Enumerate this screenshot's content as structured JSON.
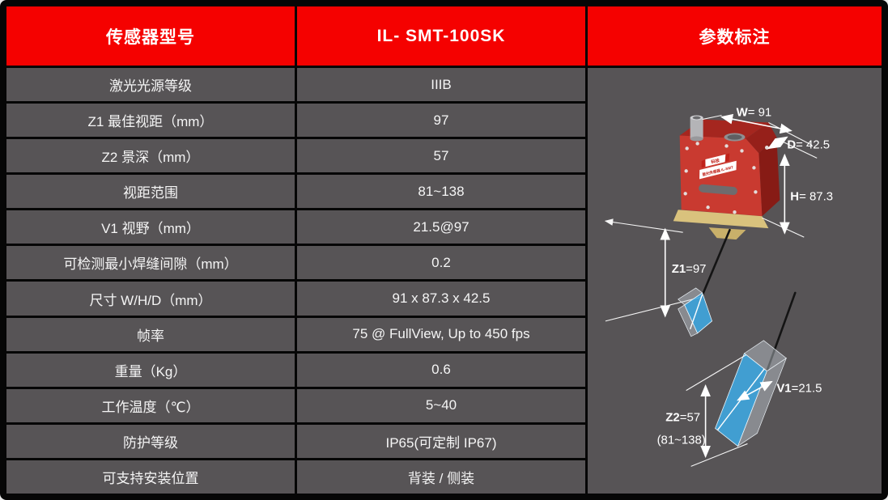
{
  "header": {
    "col_model": "传感器型号",
    "col_value": "IL- SMT-100SK",
    "col_diagram": "参数标注"
  },
  "rows": [
    {
      "label": "激光光源等级",
      "value": "IIIB"
    },
    {
      "label": "Z1 最佳视距（mm）",
      "value": "97"
    },
    {
      "label": "Z2 景深（mm）",
      "value": "57"
    },
    {
      "label": "视距范围",
      "value": "81~138"
    },
    {
      "label": "V1 视野（mm）",
      "value": "21.5@97"
    },
    {
      "label": "可检测最小焊缝间隙（mm）",
      "value": "0.2"
    },
    {
      "label": "尺寸 W/H/D（mm）",
      "value": "91 x 87.3 x 42.5"
    },
    {
      "label": "帧率",
      "value": "75 @ FullView, Up to 450 fps"
    },
    {
      "label": "重量（Kg）",
      "value": "0.6"
    },
    {
      "label": "工作温度（℃）",
      "value": "5~40"
    },
    {
      "label": "防护等级",
      "value": "IP65(可定制 IP67)"
    },
    {
      "label": "可支持安装位置",
      "value": "背装 / 侧装"
    }
  ],
  "diagram": {
    "w_label": "W",
    "w_value": "= 91",
    "d_label": "D",
    "d_value": "= 42.5",
    "h_label": "H",
    "h_value": "= 87.3",
    "z1_label": "Z1",
    "z1_value": "=97",
    "z2_label": "Z2",
    "z2_value": "=57",
    "range_value": "(81~138)",
    "v1_label": "V1",
    "v1_value": "=21.5",
    "sticker_line1": "科技",
    "sticker_line2": "激光传感器 IL-SMT"
  },
  "colors": {
    "header_red": "#f50100",
    "cell_gray": "#575456",
    "frame_black": "#060606",
    "text_white": "#f5f5f5",
    "sensor_red_front": "#c93a30",
    "sensor_red_top": "#a5261f",
    "sensor_red_side": "#871b15",
    "base_yellow": "#d9c27d",
    "beam_blue": "#3fa9e2",
    "laser_black": "#141414"
  }
}
